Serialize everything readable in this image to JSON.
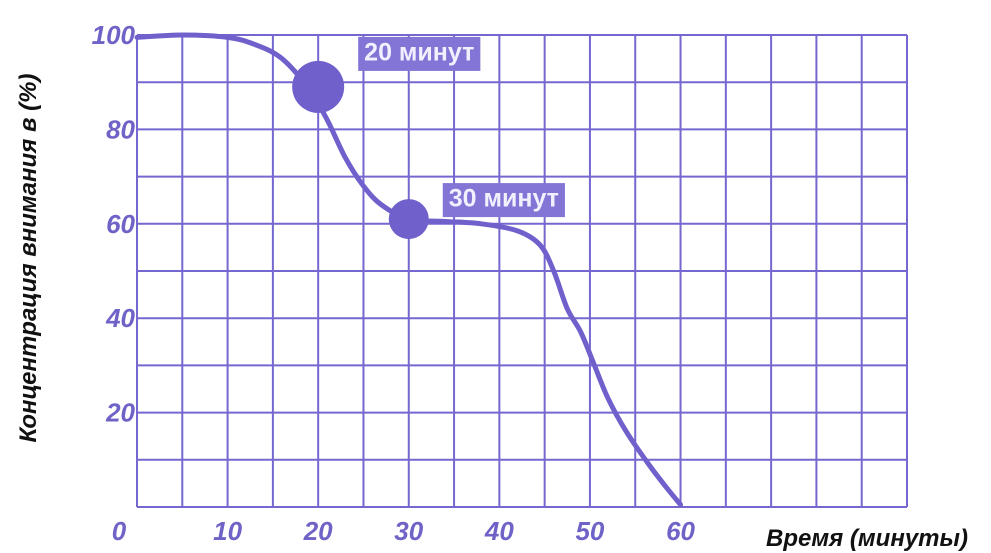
{
  "colors": {
    "accent": "#7060cc",
    "grid": "#7468d0",
    "tick_text": "#6f63c7",
    "label_box": "#8275d6",
    "label_text": "#f2f0ff",
    "axis_title": "#111111"
  },
  "chart_data": {
    "type": "line",
    "title": "",
    "xlabel": "Время (минуты)",
    "ylabel": "Концентрация внимания в (%)",
    "xlim": [
      0,
      85
    ],
    "ylim": [
      0,
      100
    ],
    "grid": true,
    "x_ticks": [
      {
        "value": 0,
        "label": "0"
      },
      {
        "value": 10,
        "label": "10"
      },
      {
        "value": 20,
        "label": "20"
      },
      {
        "value": 30,
        "label": "30"
      },
      {
        "value": 40,
        "label": "40"
      },
      {
        "value": 50,
        "label": "50"
      },
      {
        "value": 60,
        "label": "60"
      }
    ],
    "y_ticks": [
      {
        "value": 20,
        "label": "20"
      },
      {
        "value": 40,
        "label": "40"
      },
      {
        "value": 60,
        "label": "60"
      },
      {
        "value": 80,
        "label": "80"
      },
      {
        "value": 100,
        "label": "100"
      }
    ],
    "series": [
      {
        "points": [
          [
            0,
            99.5
          ],
          [
            5,
            100
          ],
          [
            10,
            99.5
          ],
          [
            13,
            98
          ],
          [
            16,
            95
          ],
          [
            19,
            88.5
          ],
          [
            21,
            82
          ],
          [
            23,
            74
          ],
          [
            25,
            68
          ],
          [
            27,
            64
          ],
          [
            30,
            61
          ],
          [
            34,
            60.5
          ],
          [
            38,
            60
          ],
          [
            42,
            58.5
          ],
          [
            44.5,
            55.5
          ],
          [
            46,
            50
          ],
          [
            47.5,
            42
          ],
          [
            49,
            37
          ],
          [
            50.5,
            30
          ],
          [
            52,
            23
          ],
          [
            54,
            16
          ],
          [
            56.5,
            9
          ],
          [
            58.5,
            4
          ],
          [
            60,
            0.5
          ]
        ]
      }
    ],
    "markers": [
      {
        "x": 20,
        "y": 89,
        "label": "20 минут",
        "size": "large"
      },
      {
        "x": 30,
        "y": 61,
        "label": "30 минут",
        "size": "small"
      }
    ]
  }
}
